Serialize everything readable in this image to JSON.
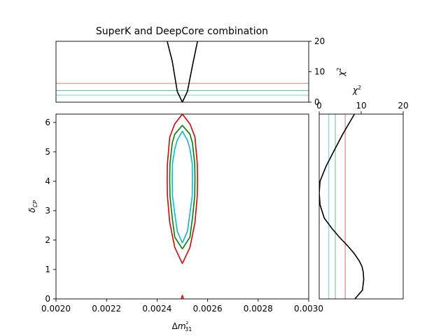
{
  "chart_data": [
    {
      "id": "top",
      "type": "line",
      "title": "SuperK and DeepCore combination",
      "ylabel": "χ2",
      "xlim": [
        0.002,
        0.003
      ],
      "ylim": [
        0,
        20
      ],
      "yticks": [
        "0",
        "10",
        "20"
      ],
      "hlines": [
        {
          "y": 6.18,
          "color": "#e8483d"
        },
        {
          "y": 3.84,
          "color": "#3cb371"
        },
        {
          "y": 2.3,
          "color": "#40c8c8"
        }
      ],
      "series": [
        {
          "color": "#000000",
          "x": [
            0.00244,
            0.00246,
            0.00248,
            0.0025,
            0.00252,
            0.00254,
            0.00256
          ],
          "y": [
            20,
            13.5,
            3.5,
            0,
            3.5,
            12,
            20
          ]
        }
      ]
    },
    {
      "id": "main",
      "type": "line",
      "xlabel": "Δm²31",
      "ylabel": "δCP",
      "xlim": [
        0.002,
        0.003
      ],
      "ylim": [
        0,
        6.283
      ],
      "xticks": [
        "0.0020",
        "0.0022",
        "0.0024",
        "0.0026",
        "0.0028",
        "0.0030"
      ],
      "yticks": [
        "0",
        "1",
        "2",
        "3",
        "4",
        "5",
        "6"
      ],
      "series": [
        {
          "color": "#e60000",
          "x": [
            0.0025,
            0.00247,
            0.00245,
            0.002441,
            0.00244,
            0.002441,
            0.00245,
            0.00247,
            0.0025,
            0.00253,
            0.00255,
            0.002559,
            0.00256,
            0.002559,
            0.00255,
            0.00253,
            0.0025
          ],
          "y": [
            1.2,
            1.75,
            2.6,
            3.5,
            4.1,
            4.6,
            5.5,
            5.95,
            6.283,
            5.95,
            5.5,
            4.6,
            4.1,
            3.5,
            2.6,
            1.75,
            1.2
          ]
        },
        {
          "color": "#008000",
          "x": [
            0.0025,
            0.00247,
            0.00246,
            0.002451,
            0.00245,
            0.002451,
            0.00246,
            0.00247,
            0.0025,
            0.00253,
            0.00254,
            0.002549,
            0.00255,
            0.002549,
            0.00254,
            0.00253,
            0.0025
          ],
          "y": [
            1.7,
            2.1,
            2.75,
            3.5,
            4.1,
            4.6,
            5.3,
            5.6,
            5.9,
            5.6,
            5.3,
            4.6,
            4.1,
            3.5,
            2.75,
            2.1,
            1.7
          ]
        },
        {
          "color": "#00bcd4",
          "x": [
            0.0025,
            0.00248,
            0.00247,
            0.002461,
            0.00246,
            0.002461,
            0.00247,
            0.00248,
            0.0025,
            0.00252,
            0.00253,
            0.002539,
            0.00254,
            0.002539,
            0.00253,
            0.00252,
            0.0025
          ],
          "y": [
            1.9,
            2.3,
            2.9,
            3.5,
            4.1,
            4.6,
            5.1,
            5.4,
            5.7,
            5.4,
            5.1,
            4.6,
            4.1,
            3.5,
            2.9,
            2.3,
            1.9
          ]
        },
        {
          "color": "#e60000",
          "x": [
            0.002496,
            0.0025,
            0.002504
          ],
          "y": [
            0.0,
            0.12,
            0.0
          ]
        }
      ]
    },
    {
      "id": "side",
      "type": "line",
      "xlabel": "χ2",
      "xlim": [
        0,
        20
      ],
      "ylim": [
        0,
        6.283
      ],
      "xticks": [
        "0",
        "10",
        "20"
      ],
      "vlines": [
        {
          "x": 6.18,
          "color": "#e8483d"
        },
        {
          "x": 3.84,
          "color": "#3cb371"
        },
        {
          "x": 2.3,
          "color": "#40c8c8"
        }
      ],
      "series": [
        {
          "color": "#000000",
          "x": [
            8.5,
            10.3,
            10.6,
            10.5,
            10.2,
            9.5,
            8.3,
            6.8,
            4.8,
            3.0,
            1.2,
            0.2,
            0.0,
            0.2,
            1.6,
            3.4,
            5.6,
            8.4
          ],
          "y": [
            0.0,
            0.3,
            0.65,
            0.9,
            1.1,
            1.3,
            1.55,
            1.8,
            2.1,
            2.4,
            2.75,
            3.2,
            3.6,
            4.0,
            4.5,
            5.0,
            5.6,
            6.283
          ]
        }
      ]
    }
  ]
}
